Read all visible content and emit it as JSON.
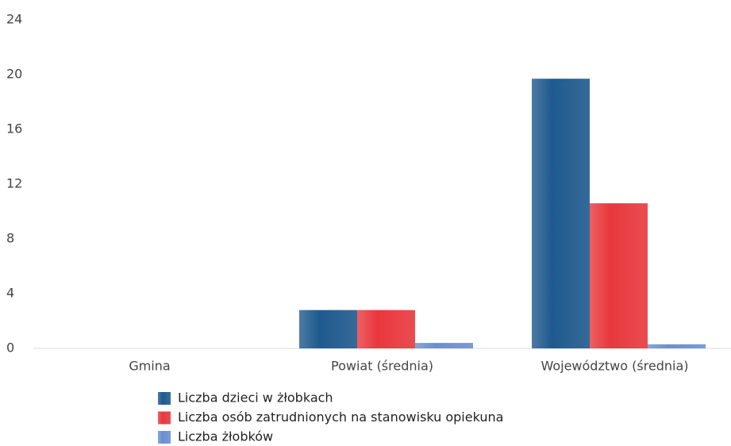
{
  "chart_data": {
    "type": "bar",
    "categories": [
      "Gmina",
      "Powiat (średnia)",
      "Województwo (średnia)"
    ],
    "series": [
      {
        "name": "Liczba dzieci w żłobkach",
        "color": "#1f5a8e",
        "values": [
          0,
          2.8,
          19.7
        ]
      },
      {
        "name": "Liczba osób zatrudnionych na stanowisku opiekuna",
        "color": "#e8383d",
        "values": [
          0,
          2.8,
          10.6
        ]
      },
      {
        "name": "Liczba żłobków",
        "color": "#6b8fd0",
        "values": [
          0,
          0.4,
          0.3
        ]
      }
    ],
    "ylim": [
      0,
      24
    ],
    "yticks": [
      0,
      4,
      8,
      12,
      16,
      20,
      24
    ],
    "grid": false
  }
}
